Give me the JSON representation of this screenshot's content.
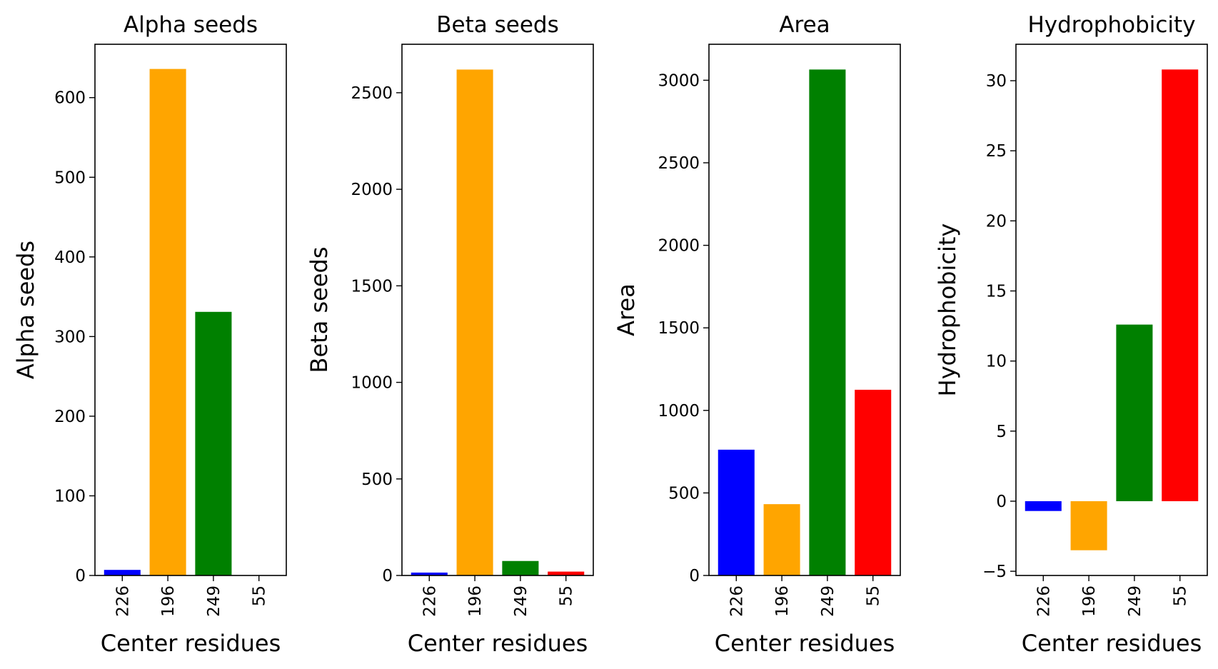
{
  "chart_data": [
    {
      "type": "bar",
      "title": "Alpha seeds",
      "xlabel": "Center residues",
      "ylabel": "Alpha seeds",
      "categories": [
        "226",
        "196",
        "249",
        "55"
      ],
      "values": [
        7,
        636,
        331,
        0
      ],
      "colors": [
        "#0000ff",
        "#ffa500",
        "#008000",
        "#ff0000"
      ],
      "ylim": [
        0,
        667
      ],
      "yticks": [
        0,
        100,
        200,
        300,
        400,
        500,
        600
      ],
      "grid": false
    },
    {
      "type": "bar",
      "title": "Beta seeds",
      "xlabel": "Center residues",
      "ylabel": "Beta seeds",
      "categories": [
        "226",
        "196",
        "249",
        "55"
      ],
      "values": [
        15,
        2620,
        75,
        20
      ],
      "colors": [
        "#0000ff",
        "#ffa500",
        "#008000",
        "#ff0000"
      ],
      "ylim": [
        0,
        2751
      ],
      "yticks": [
        0,
        500,
        1000,
        1500,
        2000,
        2500
      ],
      "grid": false
    },
    {
      "type": "bar",
      "title": "Area",
      "xlabel": "Center residues",
      "ylabel": "Area",
      "categories": [
        "226",
        "196",
        "249",
        "55"
      ],
      "values": [
        762,
        432,
        3065,
        1125
      ],
      "colors": [
        "#0000ff",
        "#ffa500",
        "#008000",
        "#ff0000"
      ],
      "ylim": [
        0,
        3218
      ],
      "yticks": [
        0,
        500,
        1000,
        1500,
        2000,
        2500,
        3000
      ],
      "grid": false
    },
    {
      "type": "bar",
      "title": "Hydrophobicity",
      "xlabel": "Center residues",
      "ylabel": "Hydrophobicity",
      "categories": [
        "226",
        "196",
        "249",
        "55"
      ],
      "values": [
        -0.7,
        -3.5,
        12.6,
        30.8
      ],
      "colors": [
        "#0000ff",
        "#ffa500",
        "#008000",
        "#ff0000"
      ],
      "ylim": [
        -5.3,
        32.6
      ],
      "yticks": [
        -5,
        0,
        5,
        10,
        15,
        20,
        25,
        30
      ],
      "grid": false
    }
  ]
}
